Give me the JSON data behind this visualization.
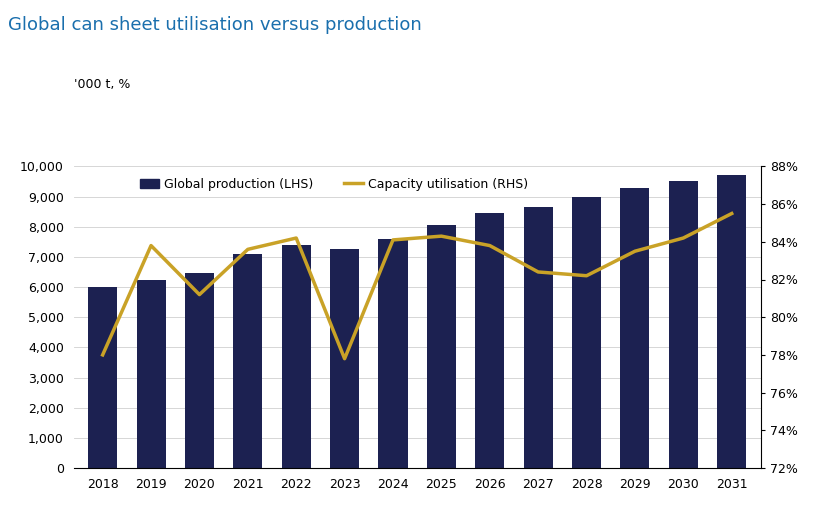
{
  "title": "Global can sheet utilisation versus production",
  "ylabel_left": "'000 t, %",
  "years": [
    2018,
    2019,
    2020,
    2021,
    2022,
    2023,
    2024,
    2025,
    2026,
    2027,
    2028,
    2029,
    2030,
    2031
  ],
  "production": [
    6000,
    6250,
    6450,
    7100,
    7400,
    7250,
    7600,
    8050,
    8450,
    8650,
    9000,
    9300,
    9500,
    9700
  ],
  "utilisation": [
    78.0,
    83.8,
    81.2,
    83.6,
    84.2,
    77.8,
    84.1,
    84.3,
    83.8,
    82.4,
    82.2,
    83.5,
    84.2,
    85.5
  ],
  "bar_color": "#1c2151",
  "line_color": "#c9a227",
  "title_color": "#1a6fad",
  "title_fontsize": 13,
  "ylim_left": [
    0,
    10000
  ],
  "ylim_right": [
    72,
    88
  ],
  "yticks_left": [
    0,
    1000,
    2000,
    3000,
    4000,
    5000,
    6000,
    7000,
    8000,
    9000,
    10000
  ],
  "yticks_right": [
    72,
    74,
    76,
    78,
    80,
    82,
    84,
    86,
    88
  ],
  "legend_labels": [
    "Global production (LHS)",
    "Capacity utilisation (RHS)"
  ],
  "background_color": "#ffffff",
  "grid_color": "#d0d0d0"
}
